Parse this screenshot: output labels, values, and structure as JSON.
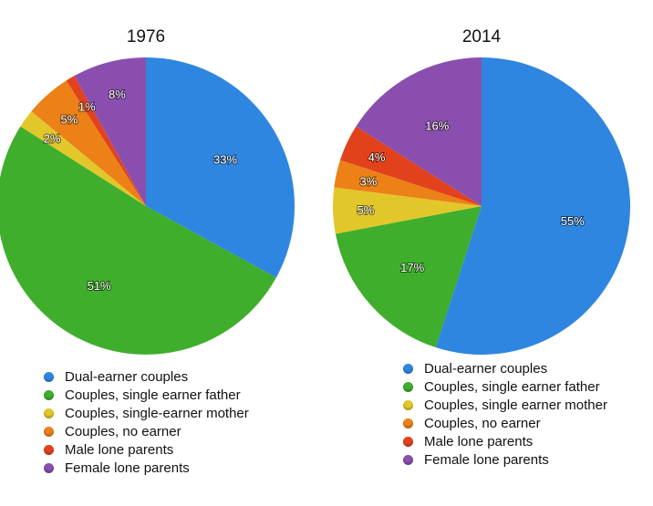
{
  "chart_data": [
    {
      "type": "pie",
      "title": "1976",
      "categories": [
        "Dual-earner couples",
        "Couples, single earner father",
        "Couples, single-earner mother",
        "Couples, no earner",
        "Male lone parents",
        "Female lone parents"
      ],
      "values": [
        33,
        51,
        2,
        5,
        1,
        8
      ],
      "labels": [
        "33%",
        "51%",
        "2%",
        "5%",
        "1%",
        "8%"
      ],
      "colors": [
        "#2f86e0",
        "#3fae2c",
        "#e2c72a",
        "#ec8117",
        "#e2421b",
        "#8a4fae"
      ],
      "legend_placement": "bottom"
    },
    {
      "type": "pie",
      "title": "2014",
      "categories": [
        "Dual-earner couples",
        "Couples, single earner father",
        "Couples, single earner mother",
        "Couples, no earner",
        "Male lone parents",
        "Female lone parents"
      ],
      "values": [
        55,
        17,
        5,
        3,
        4,
        16
      ],
      "labels": [
        "55%",
        "17%",
        "5%",
        "3%",
        "4%",
        "16%"
      ],
      "colors": [
        "#2f86e0",
        "#3fae2c",
        "#e2c72a",
        "#ec8117",
        "#e2421b",
        "#8a4fae"
      ],
      "legend_placement": "bottom"
    }
  ]
}
